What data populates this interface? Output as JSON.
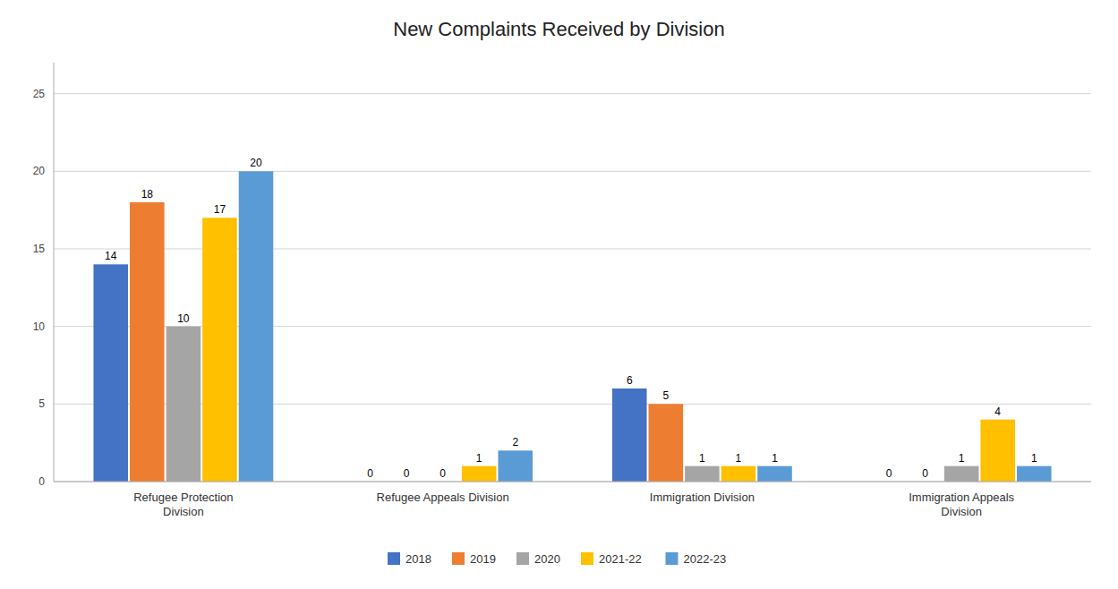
{
  "chart_data": {
    "type": "bar",
    "title": "New Complaints Received by Division",
    "categories": [
      "Refugee Protection\nDivision",
      "Refugee Appeals Division",
      "Immigration Division",
      "Immigration Appeals\nDivision"
    ],
    "series": [
      {
        "name": "2018",
        "color": "#4472C4",
        "values": [
          14,
          0,
          6,
          0
        ]
      },
      {
        "name": "2019",
        "color": "#ED7D31",
        "values": [
          18,
          0,
          5,
          0
        ]
      },
      {
        "name": "2020",
        "color": "#A5A5A5",
        "values": [
          10,
          0,
          1,
          1
        ]
      },
      {
        "name": "2021-22",
        "color": "#FFC000",
        "values": [
          17,
          1,
          1,
          4
        ]
      },
      {
        "name": "2022-23",
        "color": "#5B9BD5",
        "values": [
          20,
          2,
          1,
          1
        ]
      }
    ],
    "ylim": [
      0,
      27
    ],
    "yticks": [
      0,
      5,
      10,
      15,
      20,
      25
    ],
    "grid": true,
    "legend": "bottom",
    "data_labels": true
  }
}
